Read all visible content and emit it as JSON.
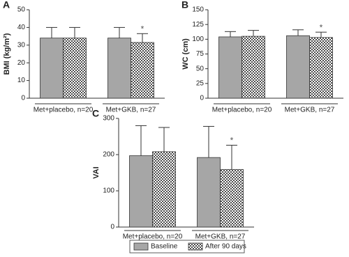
{
  "chart_data": [
    {
      "type": "bar",
      "panel": "A",
      "y_label": "BMI (kg/m²)",
      "categories": [
        "Met+placebo, n=20",
        "Met+GKB, n=27"
      ],
      "series": [
        {
          "color": "#a6a6a6",
          "values": [
            34,
            34
          ],
          "errors": [
            6,
            6
          ]
        },
        {
          "color": "#4d4d4d",
          "values": [
            34,
            31.5
          ],
          "errors": [
            6,
            5
          ]
        }
      ],
      "ylim": [
        0,
        50
      ],
      "yticks": [
        0,
        10,
        20,
        30,
        40,
        50
      ],
      "annotations": [
        {
          "text": "*",
          "series": 1,
          "category": 1
        }
      ]
    },
    {
      "type": "bar",
      "panel": "B",
      "y_label": "WC (cm)",
      "categories": [
        "Met+placebo, n=20",
        "Met+GKB, n=27"
      ],
      "series": [
        {
          "color": "#a6a6a6",
          "values": [
            104,
            106
          ],
          "errors": [
            9,
            10
          ]
        },
        {
          "color": "#4d4d4d",
          "values": [
            105,
            103
          ],
          "errors": [
            10,
            9
          ]
        }
      ],
      "ylim": [
        0,
        150
      ],
      "yticks": [
        0,
        25,
        50,
        75,
        100,
        125,
        150
      ],
      "annotations": [
        {
          "text": "*",
          "series": 1,
          "category": 1
        }
      ]
    },
    {
      "type": "bar",
      "panel": "C",
      "y_label": "VAI",
      "categories": [
        "Met+placebo, n=20",
        "Met+GKB, n=27"
      ],
      "series": [
        {
          "name": "Baseline",
          "color": "#a6a6a6",
          "values": [
            197,
            192
          ],
          "errors": [
            83,
            86
          ]
        },
        {
          "name": "After 90 days",
          "color": "#4d4d4d",
          "values": [
            208,
            159
          ],
          "errors": [
            67,
            67
          ]
        }
      ],
      "ylim": [
        0,
        300
      ],
      "yticks": [
        0,
        100,
        200,
        300
      ],
      "annotations": [
        {
          "text": "*",
          "series": 1,
          "category": 1
        }
      ]
    }
  ]
}
